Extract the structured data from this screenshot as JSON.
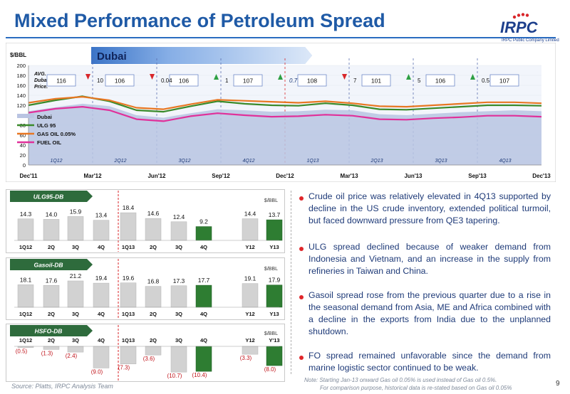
{
  "page": {
    "title": "Mixed Performance of Petroleum Spread",
    "logo_text": "IRPC",
    "logo_subtitle": "IRPC Public Company Limited",
    "source": "Source: Platts, IRPC Analysis Team",
    "note_line1": "Note: Starting Jan-13 onward  Gas oil 0.05% is used instead of Gas oil 0.5%.",
    "note_line2": "For comparison purpose, historical data is re-stated based on Gas oil 0.05%",
    "page_number": "9",
    "colors": {
      "title": "#1f5aa6",
      "bullet": "#e0262a",
      "text": "#1e3a78"
    }
  },
  "bullets": [
    "Crude oil price was relatively elevated in 4Q13 supported by decline in the US crude inventory, extended political turmoil, but faced downward pressure from QE3 tapering.",
    "ULG spread declined because of weaker demand from Indonesia and Vietnam, and an increase in the supply from refineries in Taiwan and China.",
    "Gasoil spread rose from the previous quarter due to a rise in the seasonal demand from Asia, ME and Africa combined with a decline in the exports from India due to the unplanned shutdown.",
    "FO spread remained unfavorable since the demand from marine logistic sector continued to be weak."
  ],
  "chart_data": [
    {
      "type": "line",
      "title": "Dubai",
      "ylabel": "$/BBL",
      "ylim": [
        0,
        200
      ],
      "yticks": [
        0,
        20,
        40,
        60,
        80,
        100,
        120,
        140,
        160,
        180,
        200
      ],
      "xticks": [
        "Dec'11",
        "Mar'12",
        "Jun'12",
        "Sep'12",
        "Dec'12",
        "Mar'13",
        "Jun'13",
        "Sep'13",
        "Dec'13"
      ],
      "quarter_labels": [
        "1Q12",
        "2Q12",
        "3Q12",
        "4Q12",
        "1Q13",
        "2Q13",
        "3Q13",
        "4Q13"
      ],
      "avg_label": [
        "AVG.",
        "Dubai",
        "Price."
      ],
      "avg_dubai": [
        "116",
        "106",
        "106",
        "107",
        "108",
        "101",
        "106",
        "107"
      ],
      "changes": [
        {
          "text": "10",
          "dir": "down"
        },
        {
          "text": "0.04",
          "dir": "down"
        },
        {
          "text": "1",
          "dir": "up"
        },
        {
          "text": "0.7",
          "dir": "up"
        },
        {
          "text": "7",
          "dir": "down"
        },
        {
          "text": "5",
          "dir": "up"
        },
        {
          "text": "0.5",
          "dir": "up"
        }
      ],
      "legend_position": "left",
      "series": [
        {
          "name": "Dubai",
          "color": "#b9c4e2",
          "style": "area",
          "values": [
            108,
            116,
            123,
            118,
            100,
            95,
            104,
            112,
            110,
            107,
            108,
            111,
            110,
            102,
            100,
            103,
            106,
            108,
            110,
            108
          ]
        },
        {
          "name": "ULG 95",
          "color": "#3a8a2a",
          "values": [
            120,
            130,
            138,
            128,
            110,
            107,
            118,
            128,
            123,
            120,
            119,
            124,
            120,
            112,
            111,
            114,
            117,
            120,
            120,
            119
          ]
        },
        {
          "name": "GAS OIL 0.05%",
          "color": "#e87722",
          "values": [
            125,
            133,
            137,
            130,
            115,
            112,
            122,
            131,
            129,
            127,
            125,
            128,
            124,
            118,
            117,
            120,
            123,
            126,
            126,
            124
          ]
        },
        {
          "name": "FUEL OIL",
          "color": "#e0309a",
          "values": [
            105,
            113,
            117,
            110,
            92,
            88,
            98,
            104,
            100,
            97,
            98,
            101,
            99,
            92,
            91,
            94,
            96,
            99,
            99,
            97
          ]
        }
      ]
    },
    {
      "type": "bar",
      "title": "ULG95-DB",
      "unit": "$/BBL",
      "categories": [
        "1Q12",
        "2Q",
        "3Q",
        "4Q",
        "1Q13",
        "2Q",
        "3Q",
        "4Q",
        "Y12",
        "Y13"
      ],
      "values": [
        14.3,
        14.0,
        15.9,
        13.4,
        18.4,
        14.6,
        12.4,
        9.2,
        14.4,
        13.7
      ],
      "labels": [
        "14.3",
        "14.0",
        "15.9",
        "13.4",
        "18.4",
        "14.6",
        "12.4",
        "9.2",
        "14.4",
        "13.7"
      ],
      "highlight_color": "#2e7d32",
      "bar_color": "#d2d2d2",
      "highlight": [
        7,
        9
      ]
    },
    {
      "type": "bar",
      "title": "Gasoil-DB",
      "unit": "$/BBL",
      "categories": [
        "1Q12",
        "2Q",
        "3Q",
        "4Q",
        "1Q13",
        "2Q",
        "3Q",
        "4Q",
        "Y12",
        "Y13"
      ],
      "values": [
        18.1,
        17.6,
        21.2,
        19.4,
        19.6,
        16.8,
        17.3,
        17.7,
        19.1,
        17.9
      ],
      "labels": [
        "18.1",
        "17.6",
        "21.2",
        "19.4",
        "19.6",
        "16.8",
        "17.3",
        "17.7",
        "19.1",
        "17.9"
      ],
      "highlight_color": "#2e7d32",
      "bar_color": "#d2d2d2",
      "highlight": [
        7,
        9
      ]
    },
    {
      "type": "bar",
      "title": "HSFO-DB",
      "unit": "$/BBL",
      "categories": [
        "1Q12",
        "2Q",
        "3Q",
        "4Q",
        "1Q13",
        "2Q",
        "3Q",
        "4Q",
        "Y12",
        "Y'13"
      ],
      "values": [
        -0.5,
        -1.3,
        -2.4,
        -9.0,
        -7.3,
        -3.6,
        -10.7,
        -10.4,
        -3.3,
        -8.0
      ],
      "labels": [
        "(0.5)",
        "(1.3)",
        "(2.4)",
        "(9.0)",
        "(7.3)",
        "(3.6)",
        "(10.7)",
        "(10.4)",
        "(3.3)",
        "(8.0)"
      ],
      "highlight_color": "#2e7d32",
      "bar_color": "#d2d2d2",
      "highlight": [
        7,
        9
      ]
    }
  ]
}
